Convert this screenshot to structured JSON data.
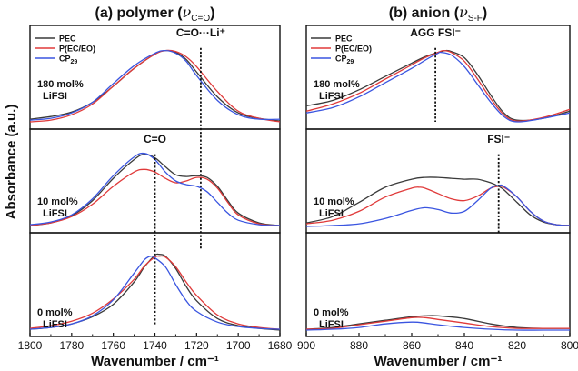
{
  "figure": {
    "ylabel": "Absorbance (a.u.)"
  },
  "chart_data": [
    {
      "type": "line",
      "panel": "a",
      "title_prefix": "(a) polymer (",
      "title_symbol": "ν",
      "title_sub": "C=O",
      "title_suffix": ")",
      "xlabel": "Wavenumber / cm⁻¹",
      "ylabel": "Absorbance (a.u.)",
      "xlim": [
        1800,
        1680
      ],
      "x_reversed": true,
      "xticks": [
        1800,
        1780,
        1760,
        1740,
        1720,
        1700,
        1680
      ],
      "tick_labels": [
        "1800",
        "1780",
        "1760",
        "1740",
        "1720",
        "1700",
        "1680"
      ],
      "grid": false,
      "legend": {
        "position": "top-left",
        "entries": [
          {
            "label": "PEC",
            "sub": "",
            "color": "#3a3a3a"
          },
          {
            "label": "P(EC/EO)",
            "sub": "",
            "color": "#e03a3a"
          },
          {
            "label": "CP",
            "sub": "29",
            "color": "#3a55e0"
          }
        ]
      },
      "subplots": [
        {
          "condition_line1": "180 mol%",
          "condition_line2": "LiFSI",
          "ylim": [
            0,
            1
          ],
          "annotations": [
            {
              "text": "C=O···Li⁺",
              "x": 1718,
              "y": 0.98,
              "dashed_line": true,
              "line_from_y": 0.85,
              "line_to_y": -1.4
            }
          ],
          "series": [
            {
              "name": "PEC",
              "x": [
                1800,
                1790,
                1780,
                1770,
                1760,
                1750,
                1740,
                1735,
                1730,
                1725,
                1720,
                1710,
                1700,
                1690,
                1680
              ],
              "y": [
                0.05,
                0.08,
                0.13,
                0.24,
                0.42,
                0.62,
                0.78,
                0.82,
                0.8,
                0.72,
                0.58,
                0.3,
                0.12,
                0.06,
                0.03
              ]
            },
            {
              "name": "P(EC/EO)",
              "x": [
                1800,
                1790,
                1780,
                1770,
                1760,
                1750,
                1740,
                1735,
                1730,
                1725,
                1720,
                1710,
                1700,
                1690,
                1680
              ],
              "y": [
                0.02,
                0.04,
                0.1,
                0.22,
                0.42,
                0.62,
                0.78,
                0.82,
                0.81,
                0.75,
                0.64,
                0.36,
                0.14,
                0.06,
                0.02
              ]
            },
            {
              "name": "CP29",
              "x": [
                1800,
                1790,
                1780,
                1770,
                1760,
                1750,
                1740,
                1735,
                1730,
                1725,
                1720,
                1710,
                1700,
                1690,
                1680
              ],
              "y": [
                0.04,
                0.06,
                0.12,
                0.24,
                0.45,
                0.65,
                0.79,
                0.82,
                0.79,
                0.7,
                0.54,
                0.26,
                0.1,
                0.05,
                0.05
              ]
            }
          ]
        },
        {
          "condition_line1": "10 mol%",
          "condition_line2": "LiFSI",
          "ylim": [
            0,
            1
          ],
          "annotations": [
            {
              "text": "C=O",
              "x": 1740,
              "y": 0.95,
              "dashed_line": true,
              "line_from_y": 0.82,
              "line_to_y": -1.1
            }
          ],
          "series": [
            {
              "name": "PEC",
              "x": [
                1800,
                1790,
                1780,
                1770,
                1760,
                1750,
                1745,
                1740,
                1735,
                1730,
                1725,
                1720,
                1715,
                1710,
                1705,
                1700,
                1690,
                1680
              ],
              "y": [
                0.02,
                0.05,
                0.13,
                0.3,
                0.55,
                0.76,
                0.82,
                0.78,
                0.68,
                0.59,
                0.57,
                0.58,
                0.56,
                0.46,
                0.3,
                0.16,
                0.05,
                0.02
              ]
            },
            {
              "name": "P(EC/EO)",
              "x": [
                1800,
                1790,
                1780,
                1770,
                1760,
                1750,
                1745,
                1740,
                1735,
                1730,
                1725,
                1720,
                1715,
                1710,
                1705,
                1700,
                1690,
                1680
              ],
              "y": [
                0.02,
                0.05,
                0.12,
                0.26,
                0.46,
                0.62,
                0.65,
                0.62,
                0.55,
                0.5,
                0.52,
                0.56,
                0.54,
                0.44,
                0.28,
                0.14,
                0.04,
                0.02
              ]
            },
            {
              "name": "CP29",
              "x": [
                1800,
                1790,
                1780,
                1770,
                1760,
                1750,
                1745,
                1740,
                1735,
                1730,
                1725,
                1720,
                1715,
                1710,
                1705,
                1700,
                1690,
                1680
              ],
              "y": [
                0.03,
                0.06,
                0.14,
                0.32,
                0.58,
                0.79,
                0.83,
                0.76,
                0.62,
                0.52,
                0.48,
                0.46,
                0.4,
                0.28,
                0.16,
                0.08,
                0.03,
                0.02
              ]
            }
          ]
        },
        {
          "condition_line1": "0 mol%",
          "condition_line2": "LiFSI",
          "ylim": [
            0,
            1
          ],
          "annotations": [],
          "series": [
            {
              "name": "PEC",
              "x": [
                1800,
                1790,
                1780,
                1770,
                1760,
                1750,
                1745,
                1740,
                1738,
                1735,
                1730,
                1725,
                1720,
                1710,
                1700,
                1690,
                1680
              ],
              "y": [
                0.02,
                0.04,
                0.08,
                0.16,
                0.3,
                0.55,
                0.72,
                0.85,
                0.86,
                0.84,
                0.7,
                0.5,
                0.34,
                0.14,
                0.06,
                0.03,
                0.01
              ]
            },
            {
              "name": "P(EC/EO)",
              "x": [
                1800,
                1790,
                1780,
                1770,
                1760,
                1750,
                1745,
                1740,
                1738,
                1735,
                1730,
                1725,
                1720,
                1710,
                1700,
                1690,
                1680
              ],
              "y": [
                0.03,
                0.06,
                0.11,
                0.2,
                0.36,
                0.58,
                0.73,
                0.83,
                0.84,
                0.83,
                0.72,
                0.55,
                0.4,
                0.18,
                0.08,
                0.04,
                0.02
              ]
            },
            {
              "name": "CP29",
              "x": [
                1800,
                1790,
                1780,
                1770,
                1760,
                1750,
                1745,
                1742,
                1740,
                1735,
                1730,
                1725,
                1720,
                1710,
                1700,
                1690,
                1680
              ],
              "y": [
                0.02,
                0.04,
                0.08,
                0.17,
                0.35,
                0.65,
                0.8,
                0.84,
                0.82,
                0.72,
                0.52,
                0.34,
                0.22,
                0.1,
                0.05,
                0.03,
                0.02
              ]
            }
          ]
        }
      ]
    },
    {
      "type": "line",
      "panel": "b",
      "title_prefix": "(b) anion (",
      "title_symbol": "ν",
      "title_sub": "S-F",
      "title_suffix": ")",
      "xlabel": "Wavenumber / cm⁻¹",
      "xlim": [
        900,
        800
      ],
      "x_reversed": true,
      "xticks": [
        900,
        880,
        860,
        840,
        820,
        800
      ],
      "tick_labels": [
        "900",
        "880",
        "860",
        "840",
        "820",
        "800"
      ],
      "grid": false,
      "legend": {
        "position": "top-left",
        "entries": [
          {
            "label": "PEC",
            "sub": "",
            "color": "#3a3a3a"
          },
          {
            "label": "P(EC/EO)",
            "sub": "",
            "color": "#e03a3a"
          },
          {
            "label": "CP",
            "sub": "29",
            "color": "#3a55e0"
          }
        ]
      },
      "subplots": [
        {
          "condition_line1": "180 mol%",
          "condition_line2": "LiFSI",
          "ylim": [
            0,
            1
          ],
          "annotations": [
            {
              "text": "AGG FSI⁻",
              "x": 851,
              "y": 0.98,
              "dashed_line": true,
              "line_from_y": 0.85,
              "line_to_y": 0.02
            }
          ],
          "series": [
            {
              "name": "PEC",
              "x": [
                900,
                890,
                880,
                870,
                860,
                855,
                850,
                847,
                845,
                840,
                835,
                830,
                825,
                820,
                810,
                800
              ],
              "y": [
                0.2,
                0.26,
                0.38,
                0.53,
                0.68,
                0.75,
                0.8,
                0.82,
                0.81,
                0.74,
                0.55,
                0.32,
                0.12,
                0.04,
                0.06,
                0.14
              ]
            },
            {
              "name": "P(EC/EO)",
              "x": [
                900,
                890,
                880,
                870,
                860,
                855,
                850,
                848,
                845,
                840,
                835,
                830,
                825,
                820,
                810,
                800
              ],
              "y": [
                0.14,
                0.22,
                0.34,
                0.5,
                0.66,
                0.74,
                0.8,
                0.82,
                0.8,
                0.7,
                0.5,
                0.28,
                0.1,
                0.03,
                0.07,
                0.16
              ]
            },
            {
              "name": "CP29",
              "x": [
                900,
                890,
                880,
                870,
                860,
                855,
                850,
                849,
                845,
                840,
                835,
                830,
                825,
                820,
                810,
                800
              ],
              "y": [
                0.12,
                0.18,
                0.3,
                0.46,
                0.62,
                0.71,
                0.79,
                0.8,
                0.77,
                0.64,
                0.44,
                0.24,
                0.08,
                0.02,
                0.06,
                0.12
              ]
            }
          ]
        },
        {
          "condition_line1": "10 mol%",
          "condition_line2": "LiFSI",
          "ylim": [
            0,
            1
          ],
          "annotations": [
            {
              "text": "FSI⁻",
              "x": 827,
              "y": 0.95,
              "dashed_line": true,
              "line_from_y": 0.82,
              "line_to_y": -0.08
            }
          ],
          "series": [
            {
              "name": "PEC",
              "x": [
                900,
                890,
                880,
                870,
                860,
                855,
                850,
                845,
                840,
                835,
                830,
                827,
                825,
                820,
                815,
                810,
                805,
                800
              ],
              "y": [
                0.05,
                0.12,
                0.28,
                0.45,
                0.54,
                0.56,
                0.56,
                0.55,
                0.54,
                0.54,
                0.5,
                0.46,
                0.42,
                0.28,
                0.14,
                0.06,
                0.03,
                0.02
              ]
            },
            {
              "name": "P(EC/EO)",
              "x": [
                900,
                890,
                880,
                870,
                860,
                857,
                855,
                850,
                845,
                840,
                835,
                830,
                827,
                825,
                820,
                815,
                810,
                805,
                800
              ],
              "y": [
                0.04,
                0.08,
                0.18,
                0.34,
                0.44,
                0.45,
                0.44,
                0.38,
                0.32,
                0.3,
                0.35,
                0.44,
                0.46,
                0.45,
                0.34,
                0.18,
                0.07,
                0.03,
                0.02
              ]
            },
            {
              "name": "CP29",
              "x": [
                900,
                890,
                880,
                870,
                860,
                855,
                850,
                845,
                840,
                835,
                830,
                827,
                825,
                820,
                815,
                810,
                805,
                800
              ],
              "y": [
                0.01,
                0.02,
                0.04,
                0.1,
                0.19,
                0.22,
                0.2,
                0.16,
                0.18,
                0.3,
                0.44,
                0.47,
                0.46,
                0.34,
                0.18,
                0.07,
                0.03,
                0.02
              ]
            }
          ]
        },
        {
          "condition_line1": "0 mol%",
          "condition_line2": "LiFSI",
          "ylim": [
            0,
            1
          ],
          "annotations": [],
          "series": [
            {
              "name": "PEC",
              "x": [
                900,
                890,
                880,
                870,
                860,
                855,
                850,
                840,
                830,
                820,
                810,
                800
              ],
              "y": [
                0.02,
                0.04,
                0.08,
                0.12,
                0.16,
                0.17,
                0.17,
                0.14,
                0.08,
                0.04,
                0.03,
                0.03
              ]
            },
            {
              "name": "P(EC/EO)",
              "x": [
                900,
                890,
                880,
                870,
                860,
                855,
                850,
                840,
                830,
                820,
                810,
                800
              ],
              "y": [
                0.02,
                0.03,
                0.07,
                0.11,
                0.15,
                0.15,
                0.13,
                0.09,
                0.05,
                0.03,
                0.03,
                0.03
              ]
            },
            {
              "name": "CP29",
              "x": [
                900,
                890,
                880,
                870,
                860,
                855,
                850,
                840,
                830,
                820,
                810,
                800
              ],
              "y": [
                0.01,
                0.02,
                0.04,
                0.08,
                0.1,
                0.09,
                0.07,
                0.04,
                0.02,
                0.01,
                0.01,
                0.01
              ]
            }
          ]
        }
      ]
    }
  ]
}
